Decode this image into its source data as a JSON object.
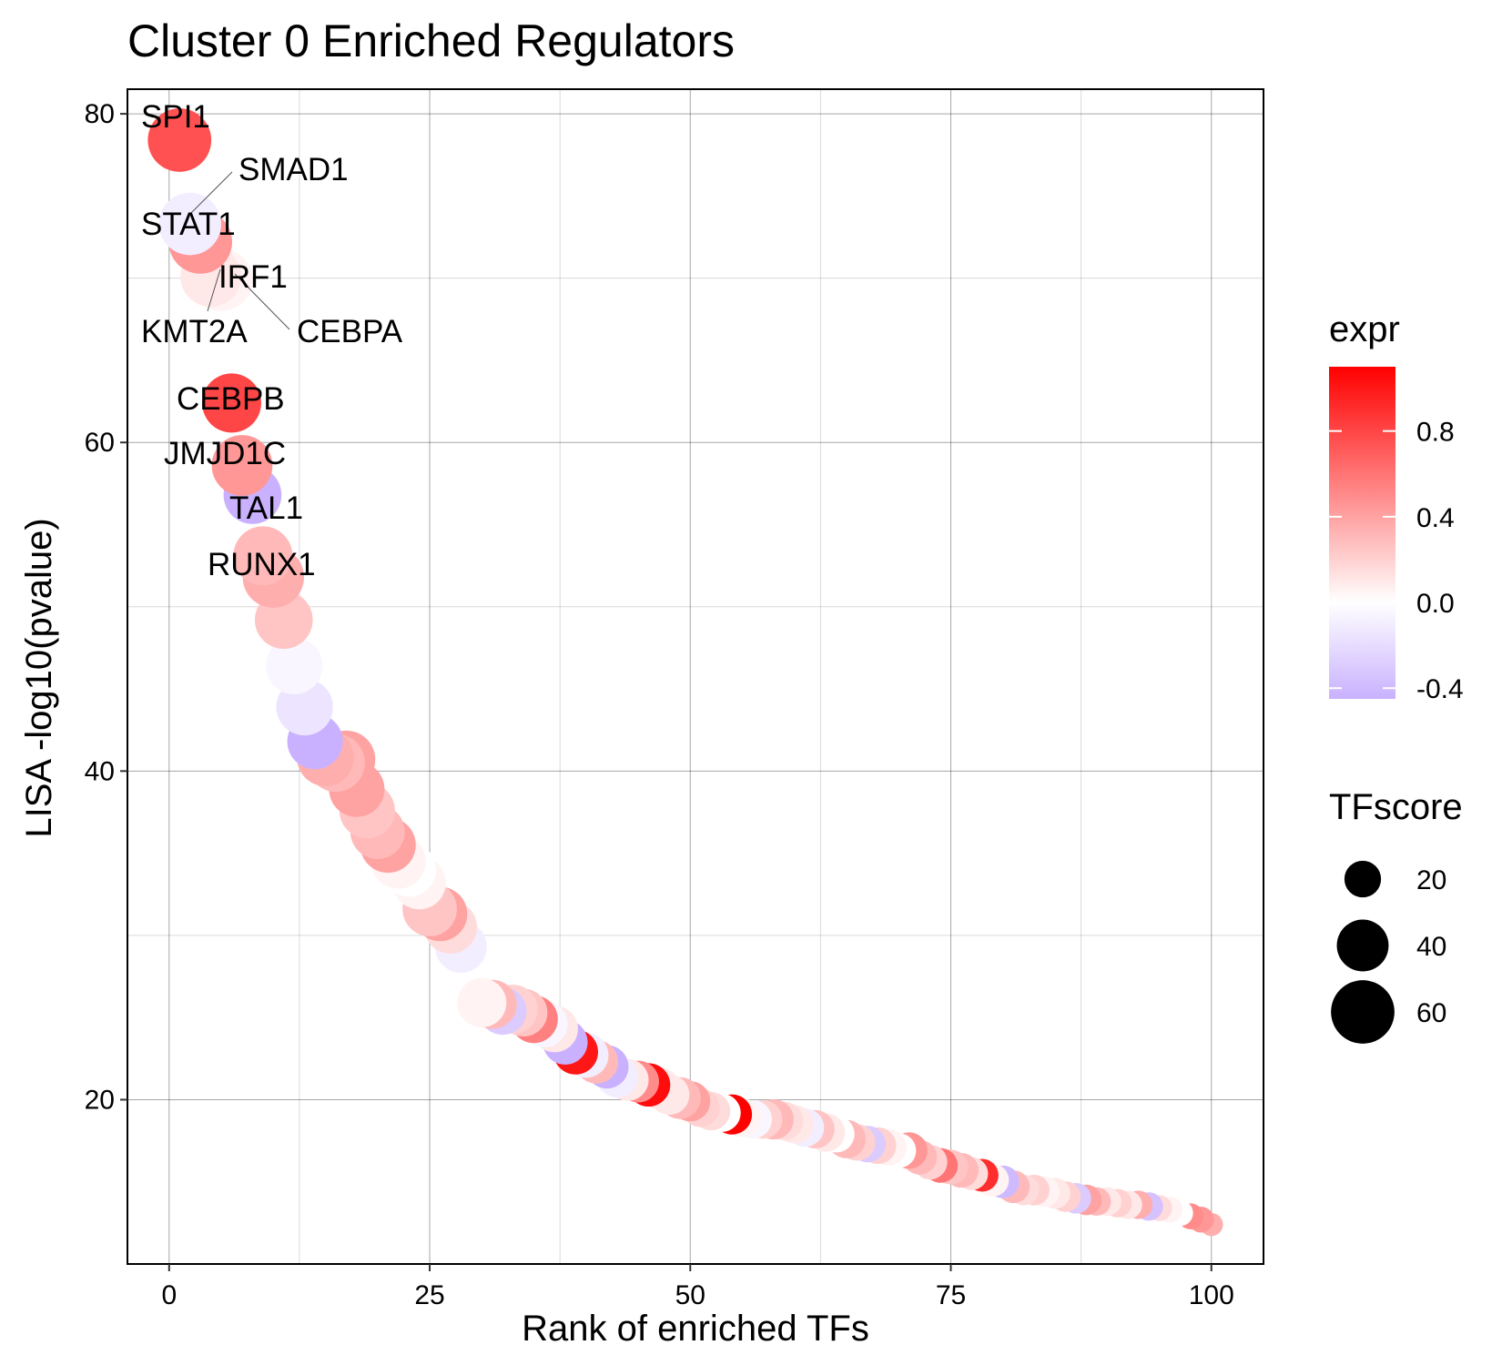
{
  "chart_data": {
    "type": "scatter",
    "title": "Cluster 0 Enriched Regulators",
    "xlabel": "Rank of enriched TFs",
    "ylabel": "LISA -log10(pvalue)",
    "xlim": [
      -4,
      105
    ],
    "ylim": [
      10,
      81.5
    ],
    "xticks": [
      0,
      25,
      50,
      75,
      100
    ],
    "yticks": [
      20,
      40,
      60,
      80
    ],
    "grid": true,
    "legend_position": "right",
    "color_legend": {
      "title": "expr",
      "ticks": [
        "0.8",
        "0.4",
        "0.0",
        "-0.4"
      ],
      "tick_values": [
        0.8,
        0.4,
        0.0,
        -0.4
      ],
      "range": [
        -0.45,
        1.1
      ],
      "low_color": "#c9b1ff",
      "mid_color": "#ffffff",
      "high_color": "#ff0000"
    },
    "size_legend": {
      "title": "TFscore",
      "labels": [
        "20",
        "40",
        "60"
      ],
      "values": [
        20,
        40,
        60
      ]
    },
    "labels": [
      {
        "text": "SPI1",
        "rank": 1
      },
      {
        "text": "SMAD1",
        "rank": 2
      },
      {
        "text": "STAT1",
        "rank": 3
      },
      {
        "text": "IRF1",
        "rank": 6
      },
      {
        "text": "KMT2A",
        "rank": 5
      },
      {
        "text": "CEBPA",
        "rank": 7
      },
      {
        "text": "CEBPB",
        "rank": 8
      },
      {
        "text": "JMJD1C",
        "rank": 9
      },
      {
        "text": "TAL1",
        "rank": 10
      },
      {
        "text": "RUNX1",
        "rank": 11
      }
    ],
    "points": [
      {
        "rank": 1,
        "y": 78.4,
        "expr": 0.75,
        "score": 60
      },
      {
        "rank": 2,
        "y": 73.3,
        "expr": -0.1,
        "score": 58
      },
      {
        "rank": 3,
        "y": 72.2,
        "expr": 0.45,
        "score": 60
      },
      {
        "rank": 4,
        "y": 70.1,
        "expr": 0.1,
        "score": 55
      },
      {
        "rank": 5,
        "y": 69.9,
        "expr": 0.05,
        "score": 58
      },
      {
        "rank": 6,
        "y": 62.4,
        "expr": 0.8,
        "score": 52
      },
      {
        "rank": 7,
        "y": 58.6,
        "expr": 0.45,
        "score": 55
      },
      {
        "rank": 8,
        "y": 56.8,
        "expr": -0.45,
        "score": 50
      },
      {
        "rank": 9,
        "y": 53.1,
        "expr": 0.3,
        "score": 52
      },
      {
        "rank": 10,
        "y": 51.8,
        "expr": 0.35,
        "score": 56
      },
      {
        "rank": 11,
        "y": 49.2,
        "expr": 0.25,
        "score": 50
      },
      {
        "rank": 12,
        "y": 46.4,
        "expr": -0.05,
        "score": 48
      },
      {
        "rank": 13,
        "y": 43.9,
        "expr": -0.15,
        "score": 48
      },
      {
        "rank": 14,
        "y": 41.8,
        "expr": -0.45,
        "score": 46
      },
      {
        "rank": 15,
        "y": 40.8,
        "expr": 0.35,
        "score": 48
      },
      {
        "rank": 16,
        "y": 40.5,
        "expr": 0.3,
        "score": 50
      },
      {
        "rank": 17,
        "y": 40.7,
        "expr": 0.4,
        "score": 50
      },
      {
        "rank": 18,
        "y": 38.9,
        "expr": 0.4,
        "score": 46
      },
      {
        "rank": 19,
        "y": 37.6,
        "expr": 0.25,
        "score": 46
      },
      {
        "rank": 20,
        "y": 36.3,
        "expr": 0.3,
        "score": 44
      },
      {
        "rank": 21,
        "y": 35.5,
        "expr": 0.4,
        "score": 46
      },
      {
        "rank": 22,
        "y": 34.5,
        "expr": 0.05,
        "score": 44
      },
      {
        "rank": 23,
        "y": 34.0,
        "expr": 0.0,
        "score": 44
      },
      {
        "rank": 24,
        "y": 33.2,
        "expr": 0.05,
        "score": 42
      },
      {
        "rank": 25,
        "y": 31.6,
        "expr": 0.25,
        "score": 44
      },
      {
        "rank": 26,
        "y": 31.3,
        "expr": 0.4,
        "score": 44
      },
      {
        "rank": 27,
        "y": 30.5,
        "expr": 0.15,
        "score": 42
      },
      {
        "rank": 28,
        "y": 29.3,
        "expr": -0.1,
        "score": 40
      },
      {
        "rank": 30,
        "y": 25.9,
        "expr": 0.05,
        "score": 36
      },
      {
        "rank": 31,
        "y": 25.8,
        "expr": 0.3,
        "score": 36
      },
      {
        "rank": 32,
        "y": 25.4,
        "expr": -0.3,
        "score": 34
      },
      {
        "rank": 33,
        "y": 25.5,
        "expr": 0.2,
        "score": 36
      },
      {
        "rank": 34,
        "y": 25.3,
        "expr": 0.25,
        "score": 34
      },
      {
        "rank": 35,
        "y": 24.9,
        "expr": 0.55,
        "score": 34
      },
      {
        "rank": 36,
        "y": 24.6,
        "expr": -0.05,
        "score": 32
      },
      {
        "rank": 37,
        "y": 24.3,
        "expr": 0.1,
        "score": 32
      },
      {
        "rank": 38,
        "y": 23.5,
        "expr": -0.45,
        "score": 30
      },
      {
        "rank": 39,
        "y": 22.9,
        "expr": 1.0,
        "score": 30
      },
      {
        "rank": 40,
        "y": 22.7,
        "expr": -0.1,
        "score": 30
      },
      {
        "rank": 41,
        "y": 22.3,
        "expr": 0.3,
        "score": 28
      },
      {
        "rank": 42,
        "y": 22.0,
        "expr": -0.45,
        "score": 28
      },
      {
        "rank": 43,
        "y": 21.4,
        "expr": -0.1,
        "score": 26
      },
      {
        "rank": 44,
        "y": 21.2,
        "expr": 0.1,
        "score": 26
      },
      {
        "rank": 45,
        "y": 21.1,
        "expr": 0.5,
        "score": 26
      },
      {
        "rank": 46,
        "y": 20.9,
        "expr": 1.05,
        "score": 28
      },
      {
        "rank": 47,
        "y": 20.7,
        "expr": 0.1,
        "score": 26
      },
      {
        "rank": 48,
        "y": 20.3,
        "expr": 0.1,
        "score": 24
      },
      {
        "rank": 49,
        "y": 20.1,
        "expr": 0.3,
        "score": 26
      },
      {
        "rank": 50,
        "y": 19.9,
        "expr": 0.4,
        "score": 24
      },
      {
        "rank": 51,
        "y": 19.5,
        "expr": 0.2,
        "score": 22
      },
      {
        "rank": 52,
        "y": 19.3,
        "expr": 0.15,
        "score": 22
      },
      {
        "rank": 53,
        "y": 19.2,
        "expr": 0.0,
        "score": 22
      },
      {
        "rank": 54,
        "y": 19.1,
        "expr": 1.1,
        "score": 24
      },
      {
        "rank": 55,
        "y": 18.9,
        "expr": 0.05,
        "score": 22
      },
      {
        "rank": 56,
        "y": 18.8,
        "expr": -0.05,
        "score": 22
      },
      {
        "rank": 57,
        "y": 18.8,
        "expr": 0.2,
        "score": 22
      },
      {
        "rank": 58,
        "y": 18.8,
        "expr": 0.3,
        "score": 24
      },
      {
        "rank": 59,
        "y": 18.7,
        "expr": 0.15,
        "score": 22
      },
      {
        "rank": 60,
        "y": 18.5,
        "expr": 0.1,
        "score": 22
      },
      {
        "rank": 61,
        "y": 18.3,
        "expr": -0.1,
        "score": 22
      },
      {
        "rank": 62,
        "y": 18.2,
        "expr": 0.25,
        "score": 22
      },
      {
        "rank": 63,
        "y": 18.0,
        "expr": 0.1,
        "score": 22
      },
      {
        "rank": 64,
        "y": 17.9,
        "expr": 0.0,
        "score": 20
      },
      {
        "rank": 65,
        "y": 17.6,
        "expr": 0.3,
        "score": 22
      },
      {
        "rank": 66,
        "y": 17.4,
        "expr": 0.2,
        "score": 20
      },
      {
        "rank": 67,
        "y": 17.3,
        "expr": -0.3,
        "score": 20
      },
      {
        "rank": 68,
        "y": 17.2,
        "expr": 0.2,
        "score": 20
      },
      {
        "rank": 69,
        "y": 17.1,
        "expr": 0.05,
        "score": 20
      },
      {
        "rank": 70,
        "y": 16.9,
        "expr": 0.0,
        "score": 18
      },
      {
        "rank": 71,
        "y": 16.9,
        "expr": 0.45,
        "score": 20
      },
      {
        "rank": 72,
        "y": 16.5,
        "expr": 0.3,
        "score": 18
      },
      {
        "rank": 73,
        "y": 16.2,
        "expr": 0.2,
        "score": 18
      },
      {
        "rank": 74,
        "y": 16.0,
        "expr": 0.6,
        "score": 18
      },
      {
        "rank": 75,
        "y": 15.9,
        "expr": 0.25,
        "score": 18
      },
      {
        "rank": 76,
        "y": 15.7,
        "expr": 0.3,
        "score": 18
      },
      {
        "rank": 77,
        "y": 15.5,
        "expr": 0.15,
        "score": 16
      },
      {
        "rank": 78,
        "y": 15.4,
        "expr": 0.9,
        "score": 16
      },
      {
        "rank": 79,
        "y": 15.1,
        "expr": 0.05,
        "score": 16
      },
      {
        "rank": 80,
        "y": 15.0,
        "expr": -0.4,
        "score": 16
      },
      {
        "rank": 81,
        "y": 14.7,
        "expr": 0.3,
        "score": 16
      },
      {
        "rank": 82,
        "y": 14.5,
        "expr": 0.15,
        "score": 14
      },
      {
        "rank": 83,
        "y": 14.5,
        "expr": 0.2,
        "score": 14
      },
      {
        "rank": 84,
        "y": 14.4,
        "expr": 0.05,
        "score": 14
      },
      {
        "rank": 85,
        "y": 14.3,
        "expr": 0.1,
        "score": 14
      },
      {
        "rank": 86,
        "y": 14.1,
        "expr": 0.2,
        "score": 14
      },
      {
        "rank": 87,
        "y": 14.0,
        "expr": -0.3,
        "score": 14
      },
      {
        "rank": 88,
        "y": 13.9,
        "expr": 0.4,
        "score": 14
      },
      {
        "rank": 89,
        "y": 13.8,
        "expr": 0.3,
        "score": 12
      },
      {
        "rank": 90,
        "y": 13.8,
        "expr": 0.1,
        "score": 12
      },
      {
        "rank": 91,
        "y": 13.7,
        "expr": 0.2,
        "score": 12
      },
      {
        "rank": 92,
        "y": 13.6,
        "expr": 0.1,
        "score": 12
      },
      {
        "rank": 93,
        "y": 13.6,
        "expr": 0.35,
        "score": 12
      },
      {
        "rank": 94,
        "y": 13.5,
        "expr": -0.35,
        "score": 12
      },
      {
        "rank": 95,
        "y": 13.4,
        "expr": 0.15,
        "score": 10
      },
      {
        "rank": 96,
        "y": 13.3,
        "expr": 0.05,
        "score": 10
      },
      {
        "rank": 97,
        "y": 13.1,
        "expr": 0.0,
        "score": 10
      },
      {
        "rank": 98,
        "y": 12.9,
        "expr": 0.5,
        "score": 10
      },
      {
        "rank": 99,
        "y": 12.7,
        "expr": 0.45,
        "score": 10
      },
      {
        "rank": 100,
        "y": 12.4,
        "expr": 0.35,
        "score": 8
      }
    ]
  }
}
